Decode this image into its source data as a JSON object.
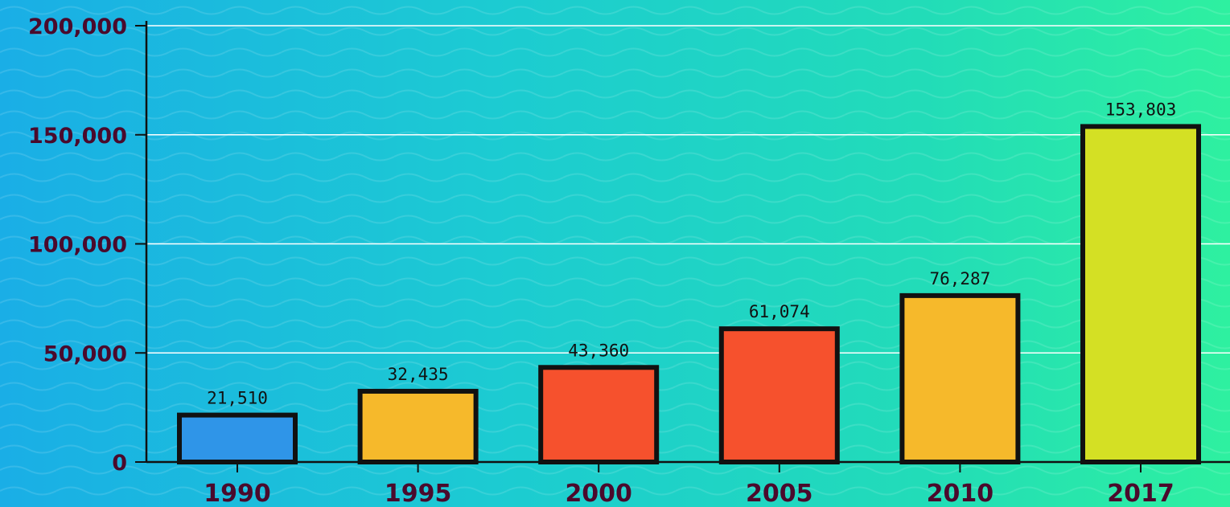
{
  "chart_data": {
    "type": "bar",
    "categories": [
      "1990",
      "1995",
      "2000",
      "2005",
      "2010",
      "2017"
    ],
    "values": [
      21510,
      32435,
      43360,
      61074,
      76287,
      153803
    ],
    "value_labels": [
      "21,510",
      "32,435",
      "43,360",
      "61,074",
      "76,287",
      "153,803"
    ],
    "bar_colors": [
      "#2f95e8",
      "#f6b92b",
      "#f6512d",
      "#f6512d",
      "#f6b92b",
      "#d4e024"
    ],
    "title": "",
    "xlabel": "",
    "ylabel": "",
    "ylim": [
      0,
      200000
    ],
    "yticks": [
      0,
      50000,
      100000,
      150000,
      200000
    ],
    "ytick_labels": [
      "0",
      "50,000",
      "100,000",
      "150,000",
      "200,000"
    ],
    "grid": true,
    "legend": "none"
  },
  "colors": {
    "background_start": "#1aaee6",
    "background_end": "#2ef0a0",
    "axis_text": "#4a0a2c",
    "bar_outline": "#111111",
    "gridline": "#ffffff"
  }
}
